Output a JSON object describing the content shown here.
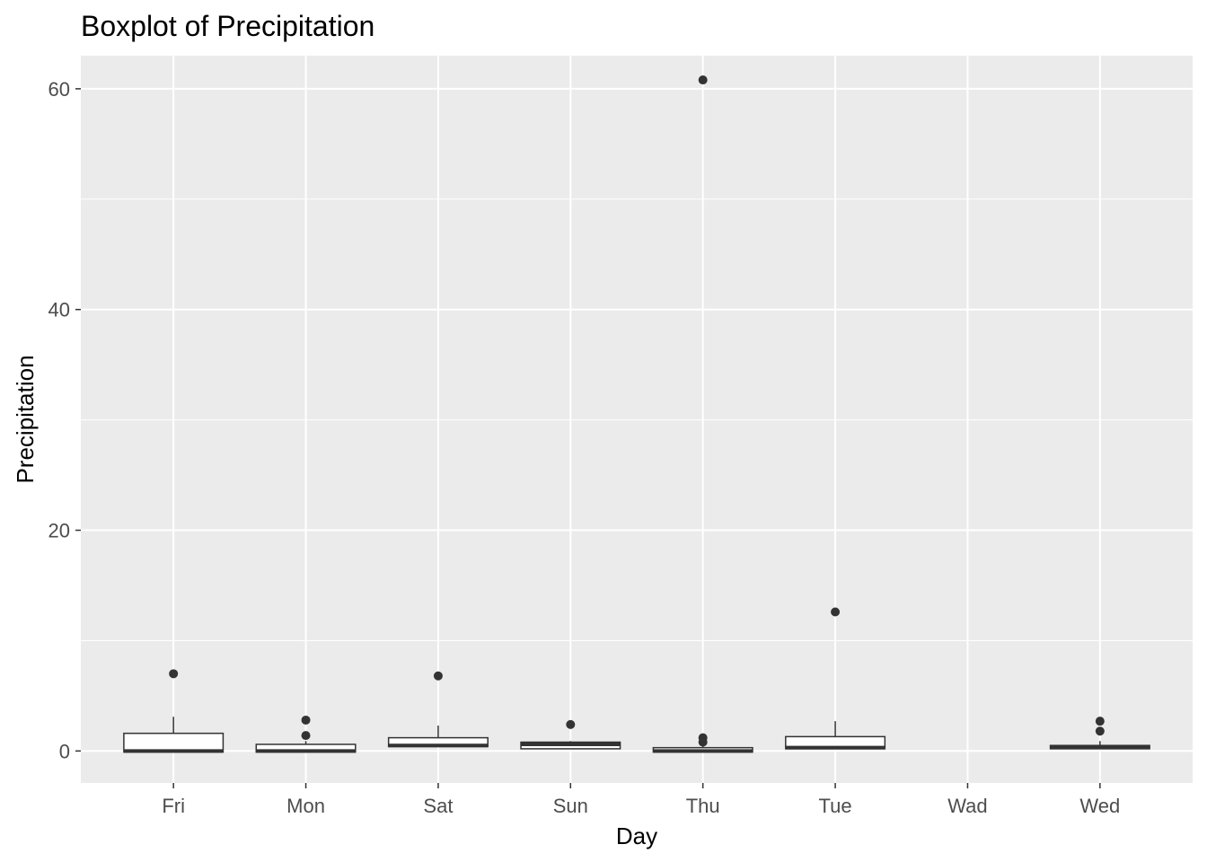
{
  "chart_data": {
    "type": "boxplot",
    "title": "Boxplot of Precipitation",
    "xlabel": "Day",
    "ylabel": "Precipitation",
    "ylim": [
      -2.9,
      63
    ],
    "yticks": [
      0,
      20,
      40,
      60
    ],
    "grid": true,
    "legend": "none",
    "categories": [
      "Fri",
      "Mon",
      "Sat",
      "Sun",
      "Thu",
      "Tue",
      "Wad",
      "Wed"
    ],
    "boxes": [
      {
        "category": "Fri",
        "min": -0.1,
        "q1": -0.1,
        "median": 0.0,
        "q3": 1.6,
        "max": 3.1,
        "outliers": [
          7.0
        ]
      },
      {
        "category": "Mon",
        "min": -0.1,
        "q1": -0.1,
        "median": 0.0,
        "q3": 0.6,
        "max": 0.9,
        "outliers": [
          1.4,
          2.8
        ]
      },
      {
        "category": "Sat",
        "min": 0.4,
        "q1": 0.4,
        "median": 0.5,
        "q3": 1.2,
        "max": 2.3,
        "outliers": [
          6.8
        ]
      },
      {
        "category": "Sun",
        "min": 0.2,
        "q1": 0.2,
        "median": 0.6,
        "q3": 0.8,
        "max": 0.9,
        "outliers": [
          2.4
        ]
      },
      {
        "category": "Thu",
        "min": -0.1,
        "q1": -0.1,
        "median": 0.0,
        "q3": 0.3,
        "max": 0.5,
        "outliers": [
          0.8,
          1.2,
          60.8
        ]
      },
      {
        "category": "Tue",
        "min": 0.2,
        "q1": 0.2,
        "median": 0.3,
        "q3": 1.3,
        "max": 2.7,
        "outliers": [
          12.6
        ]
      },
      {
        "category": "Wad",
        "min": null,
        "q1": null,
        "median": null,
        "q3": null,
        "max": null,
        "outliers": []
      },
      {
        "category": "Wed",
        "min": 0.2,
        "q1": 0.2,
        "median": 0.4,
        "q3": 0.5,
        "max": 0.9,
        "outliers": [
          1.8,
          2.7
        ]
      }
    ],
    "colors": {
      "panel": "#ebebeb",
      "grid_major": "#ffffff",
      "box_fill": "#ffffff",
      "box_line": "#333333",
      "outlier": "#333333",
      "tick_text": "#4d4d4d",
      "text": "#000000"
    }
  }
}
